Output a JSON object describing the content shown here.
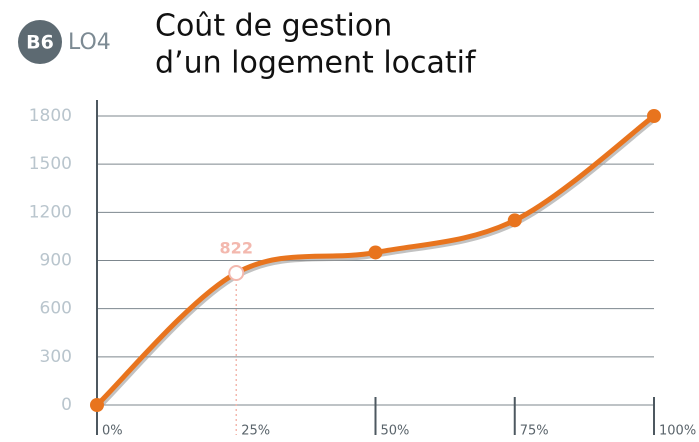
{
  "badge": "B6",
  "code": "LO4",
  "chart_data": {
    "type": "line",
    "title_lines": [
      "Coût de gestion",
      "d’un logement locatif"
    ],
    "x": [
      0,
      25,
      50,
      75,
      100
    ],
    "values": [
      0,
      822,
      950,
      1150,
      1800
    ],
    "color": "#e8741e",
    "highlight_index": 1,
    "xlim": [
      0,
      100
    ],
    "xticks": [
      {
        "value": 0,
        "label": "0%"
      },
      {
        "value": 25,
        "label": "25%"
      },
      {
        "value": 50,
        "label": "50%"
      },
      {
        "value": 75,
        "label": "75%"
      },
      {
        "value": 100,
        "label": "100%"
      }
    ],
    "ylim": [
      0,
      1800
    ],
    "yticks": [
      0,
      300,
      600,
      900,
      1200,
      1500,
      1800
    ],
    "grid": true
  }
}
